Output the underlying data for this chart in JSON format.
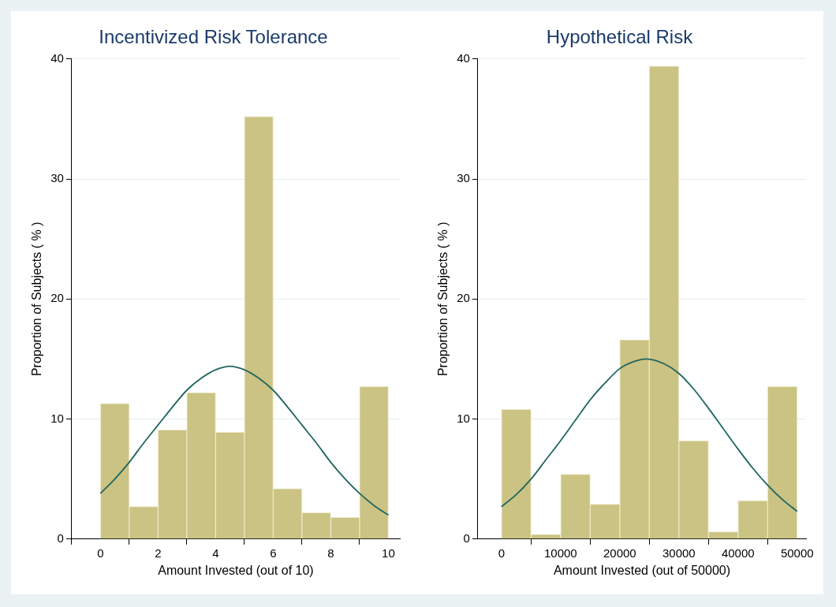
{
  "chart_data": [
    {
      "type": "histogram",
      "title": "Incentivized Risk Tolerance",
      "xlabel": "Amount Invested (out of 10)",
      "ylabel": "Proportion of Subjects ( % )",
      "bins": [
        0,
        1,
        2,
        3,
        4,
        5,
        6,
        7,
        8,
        9,
        10
      ],
      "values": [
        11.3,
        2.7,
        9.1,
        12.2,
        8.9,
        35.2,
        4.2,
        2.2,
        1.8,
        12.7
      ],
      "color": "#cbc383",
      "series": [
        {
          "type": "line",
          "color": "#1f6560",
          "x": [
            0,
            0.5,
            1,
            1.5,
            2,
            2.5,
            3,
            3.5,
            4,
            4.5,
            5,
            5.5,
            6,
            6.5,
            7,
            7.5,
            8,
            8.5,
            9,
            9.5,
            10
          ],
          "values": [
            3.8,
            5.0,
            6.4,
            8.0,
            9.5,
            11.0,
            12.4,
            13.4,
            14.1,
            14.4,
            14.1,
            13.4,
            12.4,
            11.0,
            9.5,
            8.0,
            6.4,
            5.0,
            3.8,
            2.8,
            2.0
          ]
        }
      ],
      "xlim": [
        -1,
        10.4
      ],
      "xticks": [
        0,
        2,
        4,
        6,
        8,
        10
      ],
      "ylim": [
        0,
        40
      ],
      "yticks": [
        0,
        10,
        20,
        30,
        40
      ],
      "grid": "y",
      "legend": false
    },
    {
      "type": "histogram",
      "title": "Hypothetical Risk",
      "xlabel": "Amount Invested (out of 50000)",
      "ylabel": "Proportion of Subjects ( % )",
      "bins": [
        0,
        5000,
        10000,
        15000,
        20000,
        25000,
        30000,
        35000,
        40000,
        45000,
        50000
      ],
      "values": [
        10.8,
        0.4,
        5.4,
        2.9,
        16.6,
        39.4,
        8.2,
        0.6,
        3.2,
        12.7
      ],
      "color": "#cbc383",
      "series": [
        {
          "type": "line",
          "color": "#1f6560",
          "x": [
            0,
            2500,
            5000,
            7500,
            10000,
            12500,
            15000,
            17500,
            20000,
            22500,
            24500,
            27500,
            30000,
            32500,
            35000,
            37500,
            40000,
            42500,
            45000,
            47500,
            50000
          ],
          "values": [
            2.7,
            3.7,
            5.0,
            6.6,
            8.2,
            9.9,
            11.6,
            13.0,
            14.2,
            14.8,
            15.0,
            14.6,
            13.8,
            12.5,
            10.9,
            9.2,
            7.5,
            5.9,
            4.5,
            3.3,
            2.3
          ]
        }
      ],
      "xlim": [
        -4000,
        51500
      ],
      "xticks": [
        0,
        10000,
        20000,
        30000,
        40000,
        50000
      ],
      "ylim": [
        0,
        40
      ],
      "yticks": [
        0,
        10,
        20,
        30,
        40
      ],
      "grid": "y",
      "legend": false
    }
  ]
}
